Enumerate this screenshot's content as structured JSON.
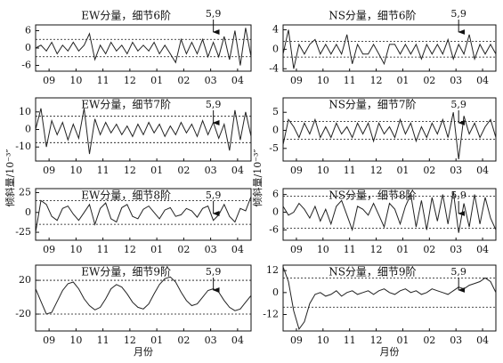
{
  "chart_data": [
    {
      "type": "line",
      "title": "EW分量，细节6阶",
      "color": "#222222",
      "x": [
        0,
        0.2,
        0.4,
        0.6,
        0.8,
        1,
        1.2,
        1.4,
        1.6,
        1.8,
        2,
        2.2,
        2.4,
        2.6,
        2.8,
        3,
        3.2,
        3.4,
        3.6,
        3.8,
        4,
        4.2,
        4.4,
        4.6,
        4.8,
        5,
        5.2,
        5.4,
        5.6,
        5.8,
        6,
        6.2,
        6.4,
        6.6,
        6.8,
        7,
        7.2,
        7.4,
        7.6,
        7.8,
        8
      ],
      "values": [
        0,
        1,
        -1,
        2,
        -2,
        1,
        -1,
        2,
        -1,
        1,
        5,
        -4,
        1,
        -2,
        2,
        -1,
        1,
        -2,
        2,
        -1,
        1,
        -1,
        2,
        -2,
        1,
        -2,
        -5,
        3,
        -2,
        2,
        -2,
        3,
        -3,
        2,
        -3,
        4,
        -4,
        6,
        -6,
        7,
        -3
      ],
      "xlim": [
        0,
        8
      ],
      "ylim": [
        -8,
        8
      ],
      "yticks": [
        6,
        0,
        -6
      ],
      "xticks": [
        {
          "value": 0.5,
          "label": "09"
        },
        {
          "value": 1.5,
          "label": "10"
        },
        {
          "value": 2.5,
          "label": "11"
        },
        {
          "value": 3.5,
          "label": "12"
        },
        {
          "value": 4.5,
          "label": "01"
        },
        {
          "value": 5.5,
          "label": "02"
        },
        {
          "value": 6.5,
          "label": "03"
        },
        {
          "value": 7.5,
          "label": "04"
        }
      ],
      "threshold": [
        -3,
        3
      ],
      "annotation": {
        "text": "5,9",
        "x": 6.6
      }
    },
    {
      "type": "line",
      "title": "EW分量，细节7阶",
      "color": "#222222",
      "x": [
        0,
        0.2,
        0.4,
        0.6,
        0.8,
        1,
        1.2,
        1.4,
        1.6,
        1.8,
        2,
        2.2,
        2.4,
        2.6,
        2.8,
        3,
        3.2,
        3.4,
        3.6,
        3.8,
        4,
        4.2,
        4.4,
        4.6,
        4.8,
        5,
        5.2,
        5.4,
        5.6,
        5.8,
        6,
        6.2,
        6.4,
        6.6,
        6.8,
        7,
        7.2,
        7.4,
        7.6,
        7.8,
        8
      ],
      "values": [
        0,
        12,
        -10,
        5,
        -3,
        4,
        -6,
        3,
        -5,
        12,
        -14,
        6,
        -3,
        4,
        -2,
        3,
        -3,
        2,
        -4,
        3,
        -3,
        4,
        -2,
        3,
        -4,
        2,
        -3,
        4,
        -2,
        3,
        -4,
        5,
        -3,
        4,
        -5,
        3,
        -12,
        11,
        -6,
        10,
        -4
      ],
      "xlim": [
        0,
        8
      ],
      "ylim": [
        -18,
        18
      ],
      "yticks": [
        10,
        0,
        -10
      ],
      "xticks": [
        {
          "value": 0.5,
          "label": "09"
        },
        {
          "value": 1.5,
          "label": "10"
        },
        {
          "value": 2.5,
          "label": "11"
        },
        {
          "value": 3.5,
          "label": "12"
        },
        {
          "value": 4.5,
          "label": "01"
        },
        {
          "value": 5.5,
          "label": "02"
        },
        {
          "value": 6.5,
          "label": "03"
        },
        {
          "value": 7.5,
          "label": "04"
        }
      ],
      "threshold": [
        -7.5,
        7.5
      ],
      "annotation": {
        "text": "5,9",
        "x": 6.6
      }
    },
    {
      "type": "line",
      "title": "EW分量，细节8阶",
      "color": "#222222",
      "y_label": "倾斜量/10⁻³″",
      "x": [
        0,
        0.2,
        0.4,
        0.6,
        0.8,
        1,
        1.2,
        1.4,
        1.6,
        1.8,
        2,
        2.2,
        2.4,
        2.6,
        2.8,
        3,
        3.2,
        3.4,
        3.6,
        3.8,
        4,
        4.2,
        4.4,
        4.6,
        4.8,
        5,
        5.2,
        5.4,
        5.6,
        5.8,
        6,
        6.2,
        6.4,
        6.6,
        6.8,
        7,
        7.2,
        7.4,
        7.6,
        7.8,
        8
      ],
      "values": [
        -25,
        15,
        10,
        -5,
        -10,
        5,
        8,
        -2,
        -10,
        0,
        10,
        -15,
        5,
        12,
        -8,
        -12,
        6,
        10,
        -5,
        -8,
        4,
        8,
        0,
        -8,
        3,
        6,
        -5,
        -3,
        5,
        2,
        -6,
        5,
        8,
        -10,
        -3,
        10,
        -5,
        -12,
        5,
        2,
        20
      ],
      "xlim": [
        0,
        8
      ],
      "ylim": [
        -35,
        30
      ],
      "yticks": [
        25,
        0,
        -25
      ],
      "xticks": [
        {
          "value": 0.5,
          "label": "09"
        },
        {
          "value": 1.5,
          "label": "10"
        },
        {
          "value": 2.5,
          "label": "11"
        },
        {
          "value": 3.5,
          "label": "12"
        },
        {
          "value": 4.5,
          "label": "01"
        },
        {
          "value": 5.5,
          "label": "02"
        },
        {
          "value": 6.5,
          "label": "03"
        },
        {
          "value": 7.5,
          "label": "04"
        }
      ],
      "threshold": [
        -15,
        15
      ],
      "annotation": {
        "text": "5,9",
        "x": 6.6
      }
    },
    {
      "type": "line",
      "title": "EW分量，细节9阶",
      "color": "#222222",
      "x_label": "月份",
      "x": [
        0,
        0.2,
        0.4,
        0.6,
        0.8,
        1,
        1.2,
        1.4,
        1.6,
        1.8,
        2,
        2.2,
        2.4,
        2.6,
        2.8,
        3,
        3.2,
        3.4,
        3.6,
        3.8,
        4,
        4.2,
        4.4,
        4.6,
        4.8,
        5,
        5.2,
        5.4,
        5.6,
        5.8,
        6,
        6.2,
        6.4,
        6.6,
        6.8,
        7,
        7.2,
        7.4,
        7.6,
        7.8,
        8
      ],
      "values": [
        10,
        -5,
        -20,
        -18,
        -5,
        8,
        16,
        18,
        10,
        -2,
        -10,
        -15,
        -12,
        -2,
        10,
        15,
        12,
        4,
        -6,
        -12,
        -14,
        -8,
        4,
        15,
        22,
        24,
        18,
        6,
        -4,
        -10,
        -8,
        0,
        8,
        10,
        6,
        -4,
        -12,
        -16,
        -14,
        -6,
        2
      ],
      "xlim": [
        0,
        8
      ],
      "ylim": [
        -40,
        38
      ],
      "yticks": [
        20,
        -20
      ],
      "xticks": [
        {
          "value": 0.5,
          "label": "09"
        },
        {
          "value": 1.5,
          "label": "10"
        },
        {
          "value": 2.5,
          "label": "11"
        },
        {
          "value": 3.5,
          "label": "12"
        },
        {
          "value": 4.5,
          "label": "01"
        },
        {
          "value": 5.5,
          "label": "02"
        },
        {
          "value": 6.5,
          "label": "03"
        },
        {
          "value": 7.5,
          "label": "04"
        }
      ],
      "threshold": [
        -20,
        20
      ],
      "annotation": {
        "text": "5,9",
        "x": 6.6
      }
    },
    {
      "type": "line",
      "title": "NS分量，细节6阶",
      "color": "#222222",
      "x": [
        0,
        0.2,
        0.4,
        0.6,
        0.8,
        1,
        1.2,
        1.4,
        1.6,
        1.8,
        2,
        2.2,
        2.4,
        2.6,
        2.8,
        3,
        3.2,
        3.4,
        3.6,
        3.8,
        4,
        4.2,
        4.4,
        4.6,
        4.8,
        5,
        5.2,
        5.4,
        5.6,
        5.8,
        6,
        6.2,
        6.4,
        6.6,
        6.8,
        7,
        7.2,
        7.4,
        7.6,
        7.8,
        8
      ],
      "values": [
        -1,
        4,
        -4,
        1,
        -1,
        1,
        2,
        -1,
        1,
        -1,
        1,
        -1,
        3,
        -3,
        1,
        -1,
        -1,
        1,
        -1,
        -3,
        1,
        1,
        -1,
        1,
        -1,
        1,
        -2,
        1,
        -1,
        1,
        -1,
        2,
        -2,
        1,
        -1,
        3,
        -2,
        1,
        -1,
        1,
        -1
      ],
      "xlim": [
        0,
        8
      ],
      "ylim": [
        -4.5,
        5
      ],
      "yticks": [
        4,
        0,
        -4
      ],
      "xticks": [
        {
          "value": 0.5,
          "label": "09"
        },
        {
          "value": 1.5,
          "label": "10"
        },
        {
          "value": 2.5,
          "label": "11"
        },
        {
          "value": 3.5,
          "label": "12"
        },
        {
          "value": 4.5,
          "label": "01"
        },
        {
          "value": 5.5,
          "label": "02"
        },
        {
          "value": 6.5,
          "label": "03"
        },
        {
          "value": 7.5,
          "label": "04"
        }
      ],
      "threshold": [
        -1.6,
        1.6
      ],
      "annotation": {
        "text": "5,9",
        "x": 6.6
      }
    },
    {
      "type": "line",
      "title": "NS分量，细节7阶",
      "color": "#222222",
      "x": [
        0,
        0.2,
        0.4,
        0.6,
        0.8,
        1,
        1.2,
        1.4,
        1.6,
        1.8,
        2,
        2.2,
        2.4,
        2.6,
        2.8,
        3,
        3.2,
        3.4,
        3.6,
        3.8,
        4,
        4.2,
        4.4,
        4.6,
        4.8,
        5,
        5.2,
        5.4,
        5.6,
        5.8,
        6,
        6.2,
        6.4,
        6.6,
        6.8,
        7,
        7.2,
        7.4,
        7.6,
        7.8,
        8
      ],
      "values": [
        -4,
        3,
        1,
        -2,
        2,
        -1,
        3,
        -2,
        1,
        -2,
        2,
        -1,
        1,
        -2,
        2,
        -1,
        2,
        -3,
        2,
        -1,
        1,
        -2,
        3,
        -1,
        2,
        -3,
        1,
        -2,
        2,
        -1,
        3,
        -2,
        5,
        -8,
        4,
        -1,
        2,
        -2,
        1,
        3,
        -2
      ],
      "xlim": [
        0,
        8
      ],
      "ylim": [
        -8.5,
        9
      ],
      "yticks": [
        5,
        0,
        -5
      ],
      "xticks": [
        {
          "value": 0.5,
          "label": "09"
        },
        {
          "value": 1.5,
          "label": "10"
        },
        {
          "value": 2.5,
          "label": "11"
        },
        {
          "value": 3.5,
          "label": "12"
        },
        {
          "value": 4.5,
          "label": "01"
        },
        {
          "value": 5.5,
          "label": "02"
        },
        {
          "value": 6.5,
          "label": "03"
        },
        {
          "value": 7.5,
          "label": "04"
        }
      ],
      "threshold": [
        -2.5,
        2.5
      ],
      "annotation": {
        "text": "5,9",
        "x": 6.6
      }
    },
    {
      "type": "line",
      "title": "NS分量，细节8阶",
      "color": "#222222",
      "y_label": "倾斜量/10⁻³″",
      "x": [
        0,
        0.2,
        0.4,
        0.6,
        0.8,
        1,
        1.2,
        1.4,
        1.6,
        1.8,
        2,
        2.2,
        2.4,
        2.6,
        2.8,
        3,
        3.2,
        3.4,
        3.6,
        3.8,
        4,
        4.2,
        4.4,
        4.6,
        4.8,
        5,
        5.2,
        5.4,
        5.6,
        5.8,
        6,
        6.2,
        6.4,
        6.6,
        6.8,
        7,
        7.2,
        7.4,
        7.6,
        7.8,
        8
      ],
      "values": [
        2,
        -1,
        0,
        3,
        1,
        -2,
        2,
        -3,
        1,
        -4,
        2,
        4,
        -1,
        -6,
        2,
        1,
        -1,
        3,
        -1,
        -5,
        3,
        1,
        -4,
        2,
        6,
        -5,
        4,
        -6,
        5,
        -3,
        6,
        -4,
        7,
        -7,
        3,
        -5,
        6,
        -4,
        5,
        -2,
        -6
      ],
      "xlim": [
        0,
        8
      ],
      "ylim": [
        -9.5,
        8
      ],
      "yticks": [
        6,
        0,
        -6
      ],
      "xticks": [
        {
          "value": 0.5,
          "label": "09"
        },
        {
          "value": 1.5,
          "label": "10"
        },
        {
          "value": 2.5,
          "label": "11"
        },
        {
          "value": 3.5,
          "label": "12"
        },
        {
          "value": 4.5,
          "label": "01"
        },
        {
          "value": 5.5,
          "label": "02"
        },
        {
          "value": 6.5,
          "label": "03"
        },
        {
          "value": 7.5,
          "label": "04"
        }
      ],
      "threshold": [
        -5.4,
        5.4
      ],
      "annotation": {
        "text": "5,9",
        "x": 6.6
      }
    },
    {
      "type": "line",
      "title": "NS分量，细节9阶",
      "color": "#222222",
      "x_label": "月份",
      "x": [
        0,
        0.2,
        0.4,
        0.6,
        0.8,
        1,
        1.2,
        1.4,
        1.6,
        1.8,
        2,
        2.2,
        2.4,
        2.6,
        2.8,
        3,
        3.2,
        3.4,
        3.6,
        3.8,
        4,
        4.2,
        4.4,
        4.6,
        4.8,
        5,
        5.2,
        5.4,
        5.6,
        5.8,
        6,
        6.2,
        6.4,
        6.6,
        6.8,
        7,
        7.2,
        7.4,
        7.6,
        7.8,
        8
      ],
      "values": [
        14,
        6,
        -10,
        -20,
        -16,
        -6,
        -1,
        0,
        -2,
        -1,
        1,
        -2,
        0,
        1,
        -1,
        0,
        1,
        -1,
        1,
        2,
        0,
        -1,
        1,
        2,
        0,
        1,
        -1,
        0,
        2,
        1,
        0,
        -1,
        1,
        3,
        2,
        4,
        5,
        6,
        8,
        6,
        0
      ],
      "xlim": [
        0,
        8
      ],
      "ylim": [
        -21,
        15
      ],
      "yticks": [
        12,
        0,
        -12
      ],
      "xticks": [
        {
          "value": 0.5,
          "label": "09"
        },
        {
          "value": 1.5,
          "label": "10"
        },
        {
          "value": 2.5,
          "label": "11"
        },
        {
          "value": 3.5,
          "label": "12"
        },
        {
          "value": 4.5,
          "label": "01"
        },
        {
          "value": 5.5,
          "label": "02"
        },
        {
          "value": 6.5,
          "label": "03"
        },
        {
          "value": 7.5,
          "label": "04"
        }
      ],
      "threshold": [
        -8,
        8
      ],
      "annotation": {
        "text": "5,9",
        "x": 6.6
      }
    }
  ]
}
